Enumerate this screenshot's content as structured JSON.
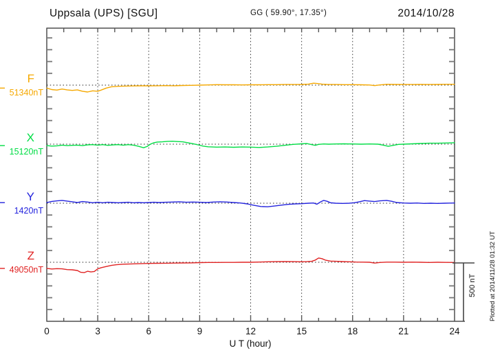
{
  "header": {
    "station": "Uppsala (UPS)  [SGU]",
    "coords": "GG ( 59.90°,  17.35°)",
    "date": "2014/10/28"
  },
  "scale_bar": {
    "label": "500 nT",
    "nT": 500
  },
  "footer_note": "Plotted at 2014/11/28 01:32 UT",
  "chart_data": {
    "type": "line",
    "title": "Uppsala (UPS) [SGU] magnetogram 2014/10/28",
    "xlabel": "U T (hour)",
    "x_range": [
      0,
      24
    ],
    "x_major_ticks": [
      0,
      3,
      6,
      9,
      12,
      15,
      18,
      21,
      24
    ],
    "x_minor_step_hours": 1,
    "grid": "dotted-vertical-at-3h",
    "row_spacing_nT": 500,
    "minor_tick_nT": 100,
    "series": [
      {
        "name": "F",
        "baseline_label": "51340nT",
        "baseline_value": 51340,
        "color": "#F5A800",
        "points": [
          [
            0,
            -25
          ],
          [
            0.3,
            -38
          ],
          [
            0.6,
            -42
          ],
          [
            0.9,
            -33
          ],
          [
            1.2,
            -40
          ],
          [
            1.5,
            -45
          ],
          [
            1.8,
            -40
          ],
          [
            2.1,
            -52
          ],
          [
            2.4,
            -58
          ],
          [
            2.7,
            -48
          ],
          [
            3.0,
            -52
          ],
          [
            3.2,
            -42
          ],
          [
            3.5,
            -25
          ],
          [
            3.8,
            -14
          ],
          [
            4.2,
            -10
          ],
          [
            4.6,
            -8
          ],
          [
            5,
            -7
          ],
          [
            5.5,
            -6
          ],
          [
            6,
            -6
          ],
          [
            6.5,
            -5
          ],
          [
            7,
            -4
          ],
          [
            7.5,
            -5
          ],
          [
            8,
            -3
          ],
          [
            8.5,
            -2
          ],
          [
            9,
            0
          ],
          [
            9.5,
            2
          ],
          [
            10,
            4
          ],
          [
            10.5,
            3
          ],
          [
            11,
            3
          ],
          [
            11.5,
            2
          ],
          [
            12,
            3
          ],
          [
            12.5,
            3
          ],
          [
            13,
            4
          ],
          [
            13.5,
            4
          ],
          [
            14,
            5
          ],
          [
            14.5,
            5
          ],
          [
            15,
            6
          ],
          [
            15.4,
            8
          ],
          [
            15.7,
            16
          ],
          [
            15.9,
            14
          ],
          [
            16.2,
            8
          ],
          [
            16.5,
            6
          ],
          [
            17,
            5
          ],
          [
            17.5,
            4
          ],
          [
            18,
            4
          ],
          [
            18.5,
            3
          ],
          [
            19,
            1
          ],
          [
            19.3,
            -4
          ],
          [
            19.6,
            2
          ],
          [
            20,
            7
          ],
          [
            20.5,
            6
          ],
          [
            21,
            5
          ],
          [
            21.5,
            5
          ],
          [
            22,
            6
          ],
          [
            22.5,
            5
          ],
          [
            23,
            6
          ],
          [
            23.5,
            7
          ],
          [
            24,
            7
          ]
        ]
      },
      {
        "name": "X",
        "baseline_label": "15120nT",
        "baseline_value": 15120,
        "color": "#00DD44",
        "points": [
          [
            0,
            -12
          ],
          [
            0.3,
            -16
          ],
          [
            0.6,
            -14
          ],
          [
            0.9,
            -8
          ],
          [
            1.2,
            -12
          ],
          [
            1.5,
            -10
          ],
          [
            1.8,
            -8
          ],
          [
            2.1,
            -12
          ],
          [
            2.4,
            -6
          ],
          [
            2.7,
            -4
          ],
          [
            3,
            -8
          ],
          [
            3.3,
            -4
          ],
          [
            3.6,
            -10
          ],
          [
            3.9,
            -6
          ],
          [
            4.2,
            -4
          ],
          [
            4.5,
            -8
          ],
          [
            4.8,
            -4
          ],
          [
            5.1,
            -8
          ],
          [
            5.4,
            -18
          ],
          [
            5.7,
            -30
          ],
          [
            5.9,
            -20
          ],
          [
            6.1,
            0
          ],
          [
            6.3,
            12
          ],
          [
            6.5,
            18
          ],
          [
            6.8,
            20
          ],
          [
            7.1,
            24
          ],
          [
            7.4,
            25
          ],
          [
            7.7,
            22
          ],
          [
            8,
            20
          ],
          [
            8.3,
            12
          ],
          [
            8.6,
            4
          ],
          [
            8.9,
            -6
          ],
          [
            9.2,
            -16
          ],
          [
            9.5,
            -22
          ],
          [
            10,
            -25
          ],
          [
            10.5,
            -24
          ],
          [
            11,
            -26
          ],
          [
            11.5,
            -24
          ],
          [
            12,
            -25
          ],
          [
            12.5,
            -28
          ],
          [
            13,
            -24
          ],
          [
            13.5,
            -18
          ],
          [
            14,
            -10
          ],
          [
            14.5,
            -2
          ],
          [
            15,
            3
          ],
          [
            15.3,
            5
          ],
          [
            15.6,
            -4
          ],
          [
            15.8,
            -10
          ],
          [
            16,
            -2
          ],
          [
            16.3,
            2
          ],
          [
            16.6,
            0
          ],
          [
            17,
            2
          ],
          [
            17.5,
            3
          ],
          [
            18,
            2
          ],
          [
            18.5,
            0
          ],
          [
            19,
            2
          ],
          [
            19.5,
            0
          ],
          [
            19.8,
            -8
          ],
          [
            20.1,
            -18
          ],
          [
            20.4,
            -10
          ],
          [
            20.7,
            -2
          ],
          [
            21,
            0
          ],
          [
            21.5,
            3
          ],
          [
            22,
            6
          ],
          [
            22.5,
            8
          ],
          [
            23,
            8
          ],
          [
            23.5,
            10
          ],
          [
            24,
            12
          ]
        ]
      },
      {
        "name": "Y",
        "baseline_label": "1420nT",
        "baseline_value": 1420,
        "color": "#2222DD",
        "points": [
          [
            0,
            5
          ],
          [
            0.3,
            15
          ],
          [
            0.6,
            20
          ],
          [
            0.9,
            24
          ],
          [
            1.2,
            18
          ],
          [
            1.5,
            12
          ],
          [
            1.8,
            6
          ],
          [
            2.1,
            14
          ],
          [
            2.4,
            10
          ],
          [
            2.7,
            4
          ],
          [
            3,
            8
          ],
          [
            3.3,
            4
          ],
          [
            3.6,
            8
          ],
          [
            3.9,
            6
          ],
          [
            4.2,
            4
          ],
          [
            4.5,
            6
          ],
          [
            4.8,
            8
          ],
          [
            5.1,
            4
          ],
          [
            5.4,
            6
          ],
          [
            5.7,
            4
          ],
          [
            6,
            6
          ],
          [
            6.3,
            8
          ],
          [
            6.6,
            6
          ],
          [
            7,
            8
          ],
          [
            7.4,
            10
          ],
          [
            7.8,
            12
          ],
          [
            8.2,
            8
          ],
          [
            8.6,
            10
          ],
          [
            9,
            8
          ],
          [
            9.4,
            6
          ],
          [
            9.8,
            10
          ],
          [
            10.2,
            12
          ],
          [
            10.6,
            10
          ],
          [
            11,
            6
          ],
          [
            11.4,
            2
          ],
          [
            11.8,
            -6
          ],
          [
            12.2,
            -18
          ],
          [
            12.6,
            -28
          ],
          [
            13,
            -30
          ],
          [
            13.4,
            -24
          ],
          [
            13.8,
            -16
          ],
          [
            14.2,
            -10
          ],
          [
            14.6,
            -6
          ],
          [
            15,
            -4
          ],
          [
            15.4,
            0
          ],
          [
            15.7,
            2
          ],
          [
            15.9,
            -8
          ],
          [
            16.1,
            10
          ],
          [
            16.3,
            24
          ],
          [
            16.5,
            16
          ],
          [
            16.7,
            4
          ],
          [
            17,
            0
          ],
          [
            17.4,
            -2
          ],
          [
            17.8,
            0
          ],
          [
            18.1,
            4
          ],
          [
            18.4,
            12
          ],
          [
            18.7,
            22
          ],
          [
            19,
            18
          ],
          [
            19.3,
            14
          ],
          [
            19.6,
            20
          ],
          [
            20,
            24
          ],
          [
            20.3,
            16
          ],
          [
            20.6,
            6
          ],
          [
            21,
            2
          ],
          [
            21.4,
            0
          ],
          [
            21.8,
            2
          ],
          [
            22.2,
            -2
          ],
          [
            22.6,
            0
          ],
          [
            23,
            -2
          ],
          [
            23.4,
            0
          ],
          [
            23.7,
            1
          ],
          [
            24,
            2
          ]
        ]
      },
      {
        "name": "Z",
        "baseline_label": "49050nT",
        "baseline_value": 49050,
        "color": "#E02222",
        "points": [
          [
            0,
            -52
          ],
          [
            0.3,
            -57
          ],
          [
            0.6,
            -54
          ],
          [
            0.9,
            -56
          ],
          [
            1.2,
            -62
          ],
          [
            1.5,
            -64
          ],
          [
            1.8,
            -70
          ],
          [
            2.0,
            -85
          ],
          [
            2.2,
            -88
          ],
          [
            2.4,
            -76
          ],
          [
            2.6,
            -82
          ],
          [
            2.8,
            -78
          ],
          [
            3.0,
            -56
          ],
          [
            3.2,
            -46
          ],
          [
            3.5,
            -36
          ],
          [
            3.8,
            -27
          ],
          [
            4.1,
            -21
          ],
          [
            4.5,
            -16
          ],
          [
            5,
            -14
          ],
          [
            5.5,
            -12
          ],
          [
            6,
            -10
          ],
          [
            6.5,
            -9
          ],
          [
            7,
            -8
          ],
          [
            7.5,
            -7
          ],
          [
            8,
            -6
          ],
          [
            8.5,
            -5
          ],
          [
            9,
            -3
          ],
          [
            9.5,
            -2
          ],
          [
            10,
            -2
          ],
          [
            10.5,
            -1
          ],
          [
            11,
            -1
          ],
          [
            11.5,
            0
          ],
          [
            12,
            0
          ],
          [
            12.5,
            2
          ],
          [
            13,
            4
          ],
          [
            13.5,
            5
          ],
          [
            14,
            6
          ],
          [
            14.5,
            5
          ],
          [
            15,
            4
          ],
          [
            15.3,
            5
          ],
          [
            15.6,
            8
          ],
          [
            15.8,
            18
          ],
          [
            16,
            36
          ],
          [
            16.2,
            30
          ],
          [
            16.4,
            18
          ],
          [
            16.7,
            10
          ],
          [
            17,
            8
          ],
          [
            17.4,
            6
          ],
          [
            17.8,
            4
          ],
          [
            18.2,
            2
          ],
          [
            18.6,
            1
          ],
          [
            19,
            0
          ],
          [
            19.3,
            -7
          ],
          [
            19.6,
            -2
          ],
          [
            20,
            1
          ],
          [
            20.5,
            1
          ],
          [
            21,
            0
          ],
          [
            21.5,
            1
          ],
          [
            22,
            0
          ],
          [
            22.5,
            -2
          ],
          [
            23,
            0
          ],
          [
            23.5,
            -1
          ],
          [
            24,
            -2
          ]
        ]
      }
    ]
  }
}
